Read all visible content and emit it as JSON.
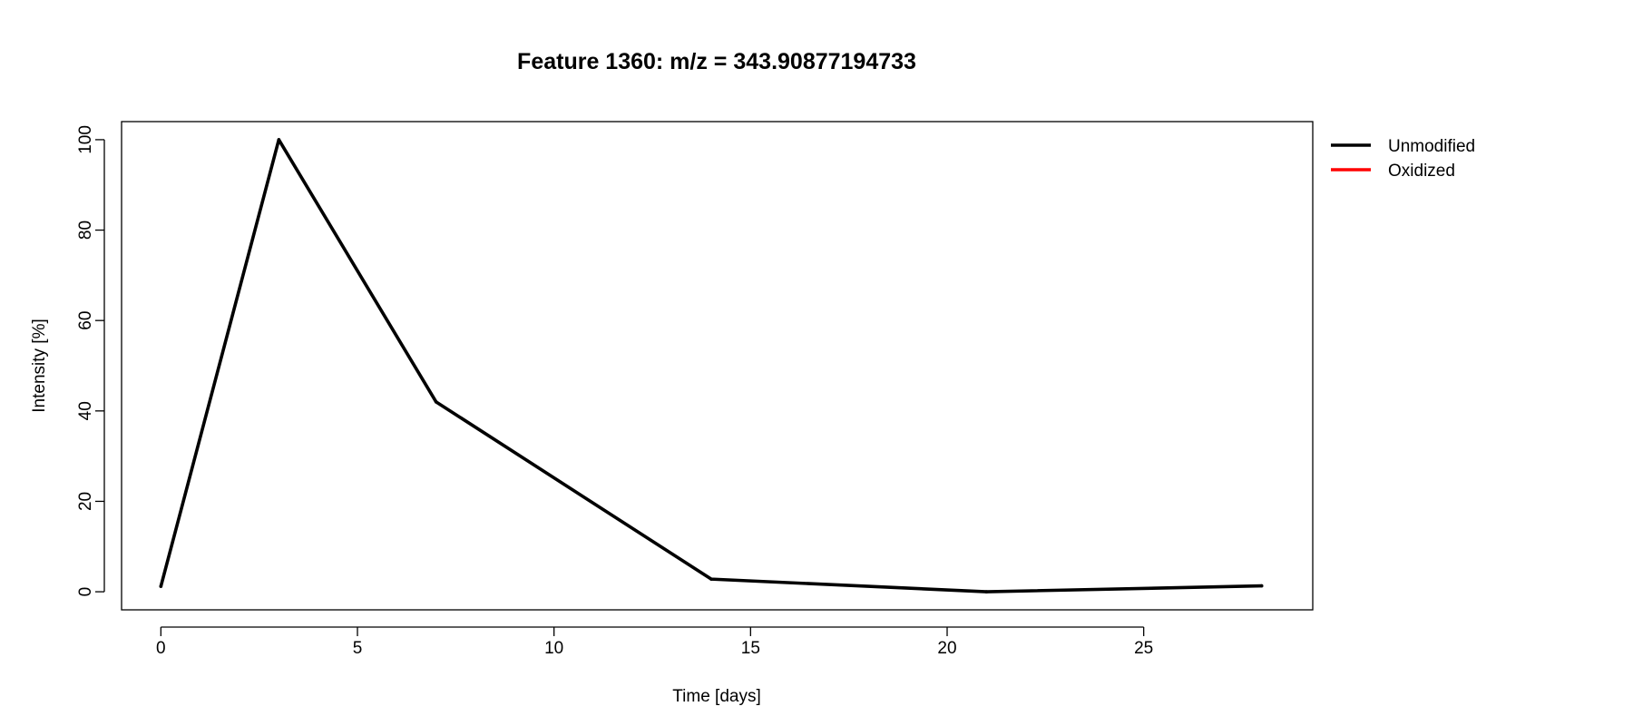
{
  "chart_data": {
    "type": "line",
    "title": "Feature 1360: m/z = 343.90877194733",
    "xlabel": "Time [days]",
    "ylabel": "Intensity [%]",
    "xlim": [
      -1,
      29.3
    ],
    "ylim": [
      -4,
      104
    ],
    "xticks": [
      0,
      5,
      10,
      15,
      20,
      25
    ],
    "yticks": [
      0,
      20,
      40,
      60,
      80,
      100
    ],
    "grid": false,
    "legend_position": "top-right outside plot",
    "series": [
      {
        "name": "Unmodified",
        "color": "#000000",
        "x": [
          0,
          3,
          7,
          14,
          21,
          28
        ],
        "y": [
          1.2,
          100,
          42,
          2.8,
          0,
          1.3
        ]
      },
      {
        "name": "Oxidized",
        "color": "#ff0000",
        "x": [],
        "y": []
      }
    ]
  }
}
